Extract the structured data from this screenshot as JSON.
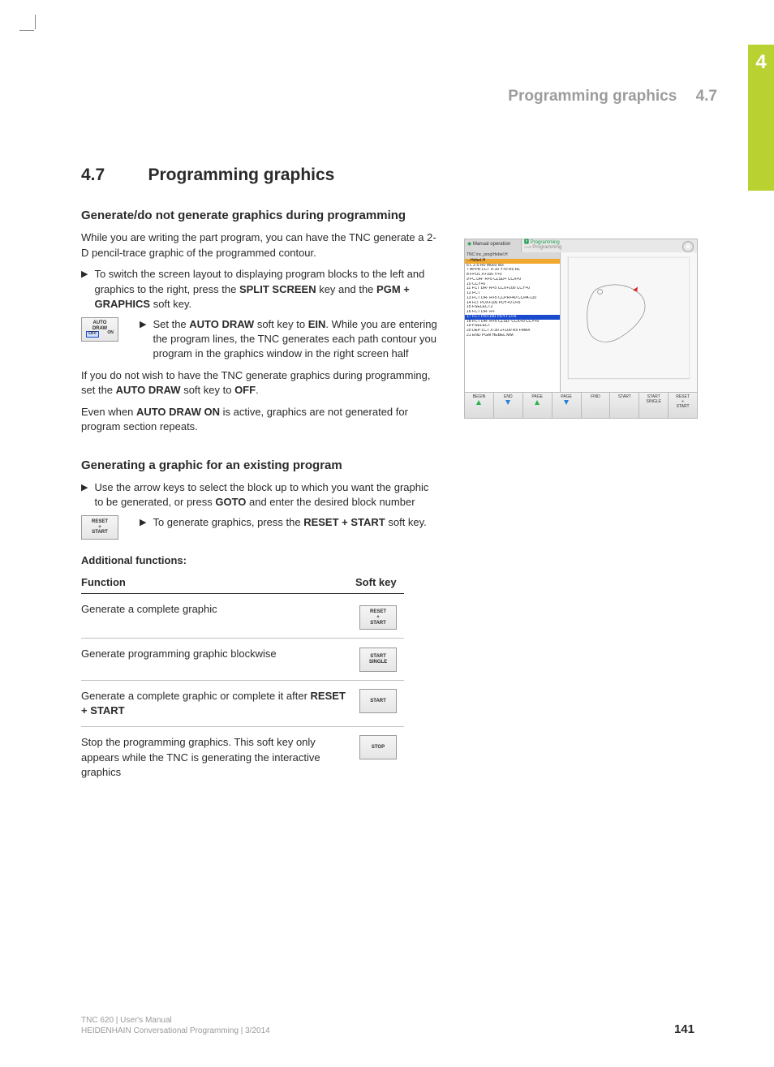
{
  "chapter_tab": "4",
  "header": {
    "title": "Programming graphics",
    "num": "4.7"
  },
  "section": {
    "num": "4.7",
    "title": "Programming graphics"
  },
  "sub1": {
    "heading": "Generate/do not generate graphics during programming",
    "para1_a": "While you are writing the part program, you can have the TNC generate a 2-D pencil-trace graphic of the programmed contour.",
    "bullet1_a": "To switch the screen layout to displaying program blocks to the left and graphics to the right, press the ",
    "bullet1_b": " key and the ",
    "bullet1_c": " soft key.",
    "kw_split": "SPLIT SCREEN",
    "kw_pgm": "PGM + GRAPHICS",
    "autodraw_label": "AUTO\nDRAW",
    "autodraw_off": "OFF",
    "autodraw_on": "ON",
    "iconbullet_a": "Set the ",
    "iconbullet_b": " soft key to ",
    "iconbullet_c": ". While you are entering the program lines, the TNC generates each path contour you program in the graphics window in the right screen half",
    "kw_autodraw": "AUTO DRAW",
    "kw_ein": "EIN",
    "para2_a": "If you do not wish to have the TNC generate graphics during programming, set the ",
    "para2_b": " soft key to ",
    "para2_c": ".",
    "kw_off": "OFF",
    "para3_a": "Even when ",
    "para3_b": " is active, graphics are not generated for program section repeats.",
    "kw_autodraw_on": "AUTO DRAW ON"
  },
  "sub2": {
    "heading": "Generating a graphic for an existing program",
    "bullet1_a": "Use the arrow keys to select the block up to which you want the graphic to be generated, or press ",
    "bullet1_b": " and enter the desired block number",
    "kw_goto": "GOTO",
    "reset_label": "RESET\n+\nSTART",
    "iconbullet_a": "To generate graphics, press the ",
    "iconbullet_b": " soft key.",
    "kw_reset": "RESET + START"
  },
  "table": {
    "caption": "Additional functions:",
    "col_function": "Function",
    "col_softkey": "Soft key",
    "rows": [
      {
        "text_a": "Generate a complete graphic",
        "text_b": "",
        "bold": "",
        "sk": "RESET\n+\nSTART"
      },
      {
        "text_a": "Generate programming graphic blockwise",
        "text_b": "",
        "bold": "",
        "sk": "START\nSINGLE"
      },
      {
        "text_a": "Generate a complete graphic or complete it after ",
        "text_b": "",
        "bold": "RESET + START",
        "sk": "START"
      },
      {
        "text_a": "Stop the programming graphics. This soft key only appears while the TNC is generating the interactive graphics",
        "text_b": "",
        "bold": "",
        "sk": "STOP"
      }
    ]
  },
  "screenshot": {
    "tb_left": "Manual operation",
    "tb_right1": "Programming",
    "tb_right2": "⟶ Programming",
    "hdr": "TNC:\\nc_prog\\Hebel.H",
    "hl_orange": "→Hebel.H",
    "lines": [
      "6  L  Z-5 R0 M003 M3",
      "7  APPR LCT  X-10  Y+0 R5 RL",
      "8  FPOL  X+100  Y+0",
      "9  FC DR- R+5 CLSD+ CCX+0",
      "10 CCY+0",
      "11 FCT DR- R+5  CCX+100  CCY+0",
      "12 FCT",
      "13 FCT DR- R+5  CCPR+40  CCPA-110",
      "14 FLT PDX+100 PDY+0 D+5",
      "15 FSELECT2",
      "16 FCT DR- R+",
      "17 FCT PR+100 PDY+ D+5",
      "18 FCT DR- R+5 CLSD-  CCX+0  CCY+0",
      "19 FSELECT",
      "20 DEP LCT  X-30  Z+100 R5 FMAX",
      "21 END PGM HEBEL MM"
    ],
    "hl_blue_index": 11,
    "sk_labels": [
      "BEGIN",
      "END",
      "PAGE",
      "PAGE",
      "FIND",
      "START",
      "START\nSINGLE",
      "RESET\n+\nSTART"
    ]
  },
  "footer": {
    "line1": "TNC 620 | User's Manual",
    "line2": "HEIDENHAIN Conversational Programming | 3/2014"
  },
  "page_num": "141"
}
